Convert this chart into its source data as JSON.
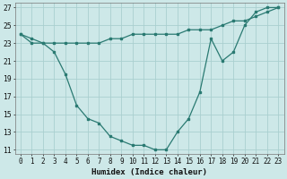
{
  "line1_x": [
    0,
    1,
    2,
    3,
    4,
    5,
    6,
    7,
    8,
    9,
    10,
    11,
    12,
    13,
    14,
    15,
    16,
    17,
    18,
    19,
    20,
    21,
    22,
    23
  ],
  "line1_y": [
    24.0,
    23.5,
    23.0,
    23.0,
    23.0,
    23.0,
    23.0,
    23.0,
    23.5,
    23.5,
    24.0,
    24.0,
    24.0,
    24.0,
    24.0,
    24.5,
    24.5,
    24.5,
    25.0,
    25.5,
    25.5,
    26.0,
    26.5,
    27.0
  ],
  "line2_x": [
    0,
    1,
    2,
    3,
    4,
    5,
    6,
    7,
    8,
    9,
    10,
    11,
    12,
    13,
    14,
    15,
    16,
    17,
    18,
    19,
    20,
    21,
    22,
    23
  ],
  "line2_y": [
    24.0,
    23.0,
    23.0,
    22.0,
    19.5,
    16.0,
    14.5,
    14.0,
    12.5,
    12.0,
    11.5,
    11.5,
    11.0,
    11.0,
    13.0,
    14.5,
    17.5,
    23.5,
    21.0,
    22.0,
    25.0,
    26.5,
    27.0,
    27.0
  ],
  "color": "#2a7a72",
  "background_color": "#cde8e8",
  "grid_color": "#aacfcf",
  "xlabel": "Humidex (Indice chaleur)",
  "xlim": [
    -0.5,
    23.5
  ],
  "ylim": [
    10.5,
    27.5
  ],
  "yticks": [
    11,
    13,
    15,
    17,
    19,
    21,
    23,
    25,
    27
  ],
  "xticks": [
    0,
    1,
    2,
    3,
    4,
    5,
    6,
    7,
    8,
    9,
    10,
    11,
    12,
    13,
    14,
    15,
    16,
    17,
    18,
    19,
    20,
    21,
    22,
    23
  ],
  "xlabel_fontsize": 6.5,
  "tick_fontsize": 5.5
}
